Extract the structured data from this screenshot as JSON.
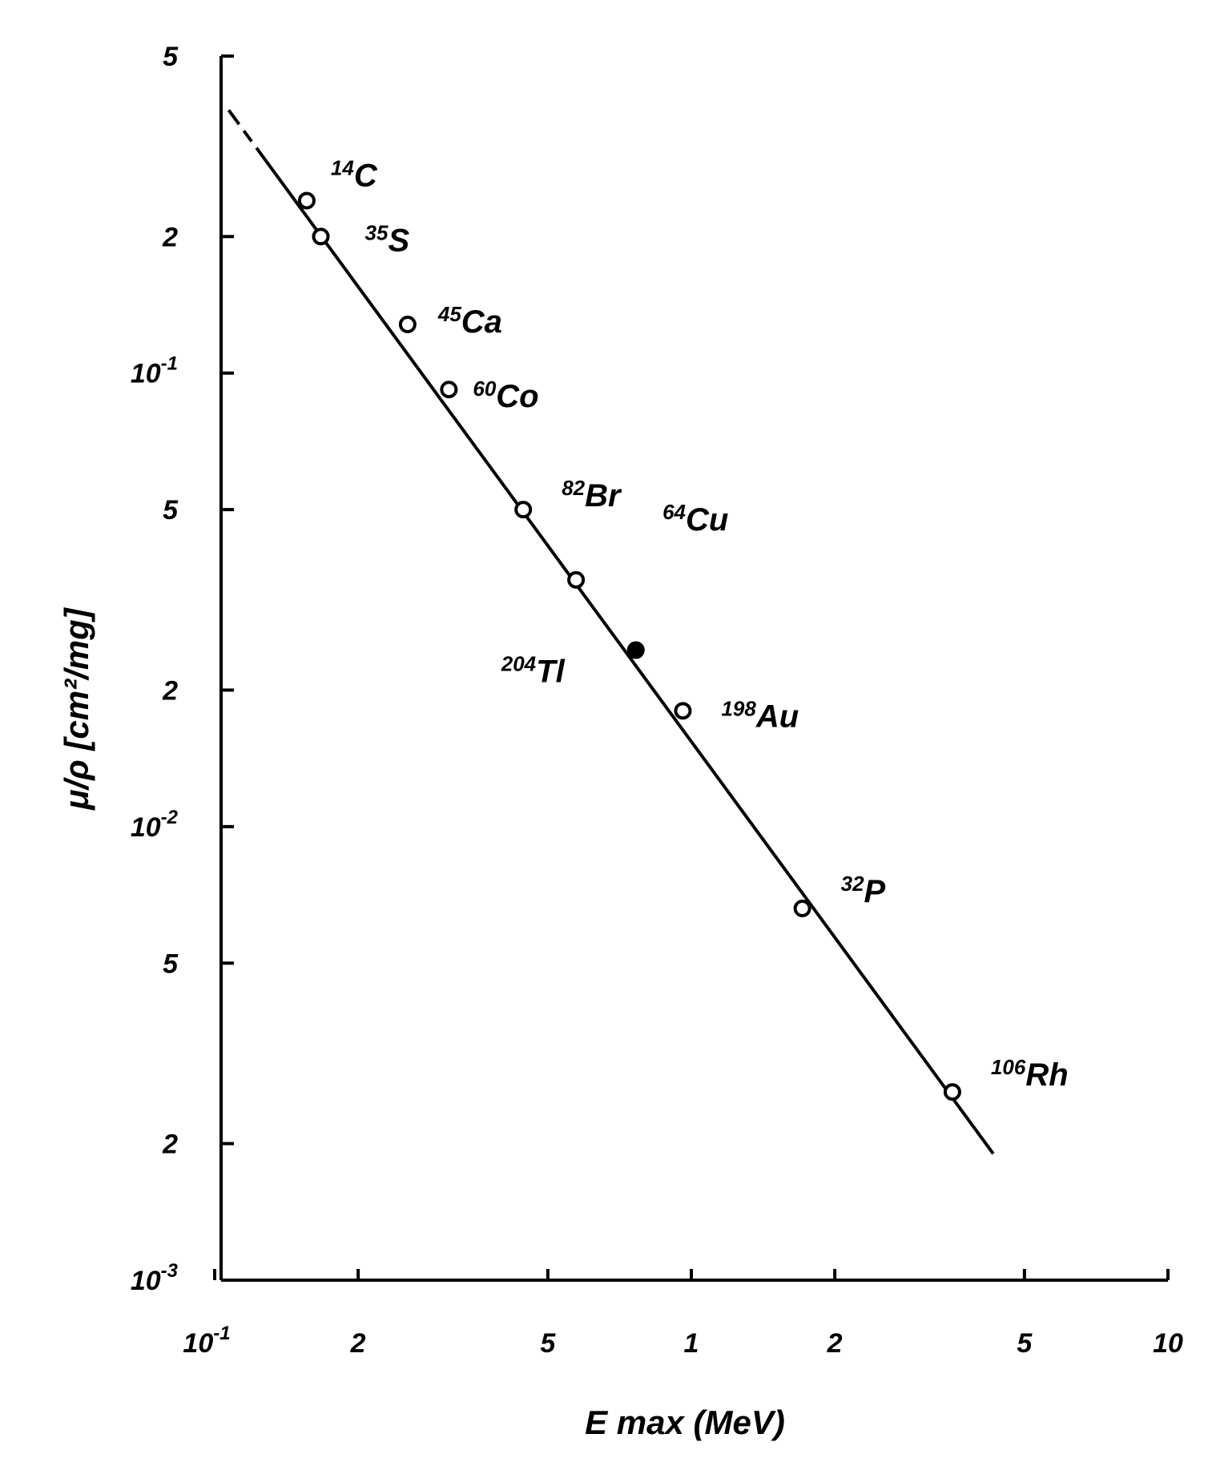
{
  "chart_data": {
    "type": "scatter",
    "xlabel": "E max (MeV)",
    "ylabel": "μ/ρ [cm²/mg]",
    "x_scale": "log",
    "y_scale": "log",
    "xlim": [
      0.1,
      10
    ],
    "ylim": [
      0.001,
      0.5
    ],
    "grid": false,
    "x_ticks": [
      {
        "value": 0.1,
        "label": "10",
        "exp": "-1"
      },
      {
        "value": 0.2,
        "label": "2",
        "exp": ""
      },
      {
        "value": 0.5,
        "label": "5",
        "exp": ""
      },
      {
        "value": 1,
        "label": "1",
        "exp": ""
      },
      {
        "value": 2,
        "label": "2",
        "exp": ""
      },
      {
        "value": 5,
        "label": "5",
        "exp": ""
      },
      {
        "value": 10,
        "label": "10",
        "exp": ""
      }
    ],
    "y_ticks": [
      {
        "value": 0.001,
        "label": "10",
        "exp": "-3"
      },
      {
        "value": 0.002,
        "label": "2",
        "exp": ""
      },
      {
        "value": 0.005,
        "label": "5",
        "exp": ""
      },
      {
        "value": 0.01,
        "label": "10",
        "exp": "-2"
      },
      {
        "value": 0.02,
        "label": "2",
        "exp": ""
      },
      {
        "value": 0.05,
        "label": "5",
        "exp": ""
      },
      {
        "value": 0.1,
        "label": "10",
        "exp": "-1"
      },
      {
        "value": 0.2,
        "label": "2",
        "exp": ""
      },
      {
        "value": 0.5,
        "label": "5",
        "exp": ""
      }
    ],
    "points": [
      {
        "mass": "14",
        "element": "C",
        "x": 0.156,
        "y": 0.24,
        "filled": false
      },
      {
        "mass": "35",
        "element": "S",
        "x": 0.167,
        "y": 0.2,
        "filled": false
      },
      {
        "mass": "45",
        "element": "Ca",
        "x": 0.254,
        "y": 0.128,
        "filled": false
      },
      {
        "mass": "60",
        "element": "Co",
        "x": 0.31,
        "y": 0.092,
        "filled": false
      },
      {
        "mass": "82",
        "element": "Br",
        "x": 0.444,
        "y": 0.05,
        "filled": false
      },
      {
        "mass": "64",
        "element": "Cu",
        "x": 0.573,
        "y": 0.035,
        "filled": false
      },
      {
        "mass": "204",
        "element": "Tl",
        "x": 0.765,
        "y": 0.0245,
        "filled": true
      },
      {
        "mass": "198",
        "element": "Au",
        "x": 0.96,
        "y": 0.018,
        "filled": false
      },
      {
        "mass": "32",
        "element": "P",
        "x": 1.71,
        "y": 0.0066,
        "filled": false
      },
      {
        "mass": "106",
        "element": "Rh",
        "x": 3.53,
        "y": 0.0026,
        "filled": false
      }
    ],
    "fit_line": {
      "x": [
        0.107,
        4.3
      ],
      "y": [
        0.38,
        0.0019
      ]
    }
  }
}
